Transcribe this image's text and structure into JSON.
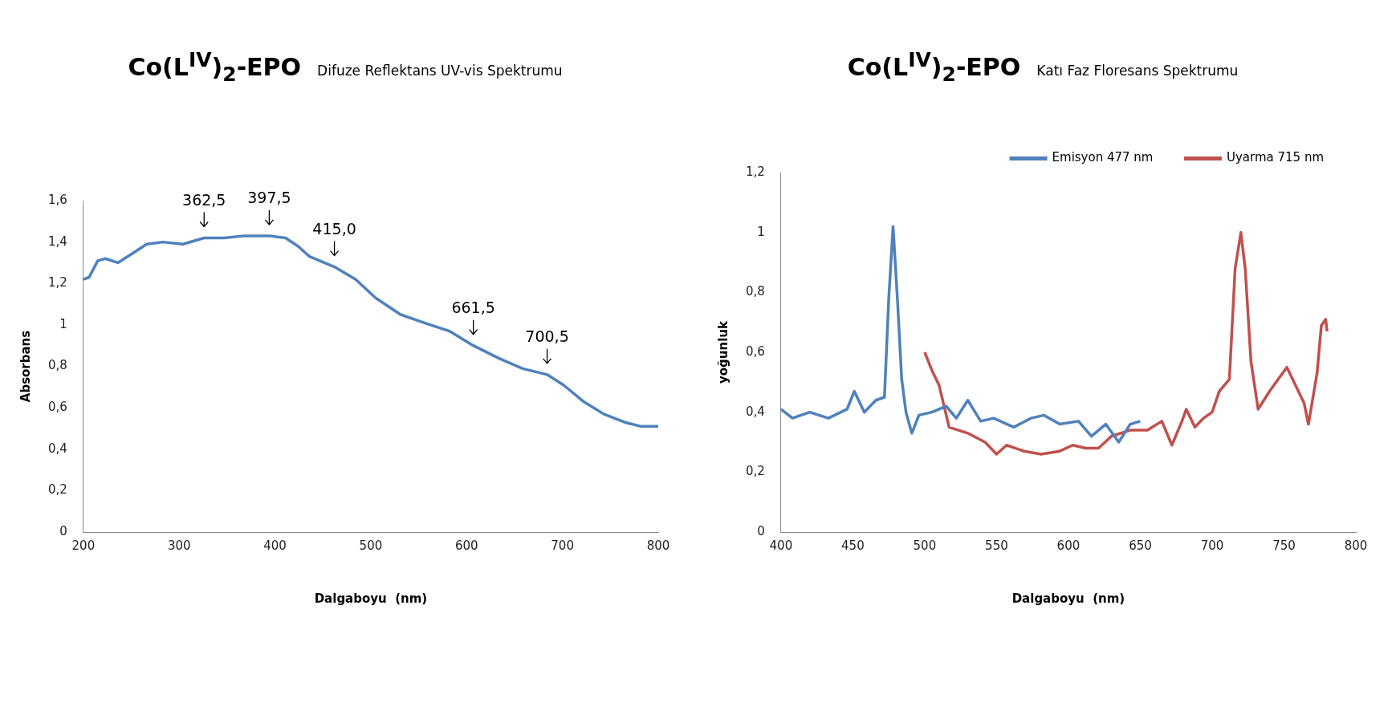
{
  "chart_data": [
    {
      "type": "line",
      "title": "Co(L$^{IV}$)$_{2}$-EPO",
      "subtitle": "Difuze Reflektans UV-vis Spektrumu",
      "xlabel": "Dalgaboyu  (nm)",
      "ylabel": "Absorbans",
      "xlim": [
        200,
        800
      ],
      "xticks": [
        200,
        300,
        400,
        500,
        600,
        700,
        800
      ],
      "ylim": [
        0,
        1.6
      ],
      "yticks": [
        {
          "value": 0,
          "label": "0"
        },
        {
          "value": 0.2,
          "label": "0,2"
        },
        {
          "value": 0.4,
          "label": "0,4"
        },
        {
          "value": 0.6,
          "label": "0,6"
        },
        {
          "value": 0.8,
          "label": "0,8"
        },
        {
          "value": 1,
          "label": "1"
        },
        {
          "value": 1.2,
          "label": "1,2"
        },
        {
          "value": 1.4,
          "label": "1,4"
        },
        {
          "value": 1.6,
          "label": "1,6"
        }
      ],
      "series": [
        {
          "color": "#4f81bd",
          "x": [
            200,
            206,
            215,
            223,
            236,
            253,
            266,
            283,
            304,
            326,
            347,
            368,
            394,
            411,
            424,
            436,
            462,
            484,
            505,
            531,
            556,
            582,
            607,
            633,
            658,
            684,
            701,
            722,
            743,
            765,
            782,
            800
          ],
          "values": [
            1.22,
            1.23,
            1.31,
            1.32,
            1.3,
            1.35,
            1.39,
            1.4,
            1.39,
            1.42,
            1.42,
            1.43,
            1.43,
            1.42,
            1.38,
            1.33,
            1.28,
            1.22,
            1.13,
            1.05,
            1.01,
            0.97,
            0.9,
            0.84,
            0.79,
            0.76,
            0.71,
            0.63,
            0.57,
            0.53,
            0.51,
            0.51
          ]
        }
      ],
      "annotations": [
        {
          "text": "362,5",
          "x": 326,
          "y": 1.42
        },
        {
          "text": "397,5",
          "x": 394,
          "y": 1.43
        },
        {
          "text": "415,0",
          "x": 462,
          "y": 1.28
        },
        {
          "text": "661,5",
          "x": 607,
          "y": 0.9
        },
        {
          "text": "700,5",
          "x": 684,
          "y": 0.76
        }
      ]
    },
    {
      "type": "line",
      "title": "Co(L$^{IV}$)$_{2}$-EPO",
      "subtitle": "Katı Faz Floresans Spektrumu",
      "xlabel": "Dalgaboyu  (nm)",
      "ylabel": "yoğunluk",
      "legend": "top right",
      "xlim": [
        400,
        800
      ],
      "xticks": [
        400,
        450,
        500,
        550,
        600,
        650,
        700,
        750,
        800
      ],
      "ylim": [
        0,
        1.2
      ],
      "yticks": [
        {
          "value": 0,
          "label": "0"
        },
        {
          "value": 0.2,
          "label": "0,2"
        },
        {
          "value": 0.4,
          "label": "0,4"
        },
        {
          "value": 0.6,
          "label": "0,6"
        },
        {
          "value": 0.8,
          "label": "0,8"
        },
        {
          "value": 1,
          "label": "1"
        },
        {
          "value": 1.2,
          "label": "1,2"
        }
      ],
      "series": [
        {
          "name": "Emisyon 477 nm",
          "color": "#4f81bd",
          "x": [
            400,
            408,
            420,
            433,
            446,
            451,
            458,
            466,
            472,
            475,
            478,
            481,
            484,
            487,
            491,
            496,
            505,
            515,
            522,
            530,
            539,
            548,
            562,
            574,
            583,
            594,
            607,
            616,
            626,
            635,
            643,
            650
          ],
          "values": [
            0.41,
            0.38,
            0.4,
            0.38,
            0.41,
            0.47,
            0.4,
            0.44,
            0.45,
            0.78,
            1.02,
            0.78,
            0.51,
            0.4,
            0.33,
            0.39,
            0.4,
            0.42,
            0.38,
            0.44,
            0.37,
            0.38,
            0.35,
            0.38,
            0.39,
            0.36,
            0.37,
            0.32,
            0.36,
            0.3,
            0.36,
            0.37
          ]
        },
        {
          "name": "Uyarma 715 nm",
          "color": "#c0504d",
          "x": [
            500,
            505,
            510,
            517,
            530,
            542,
            550,
            557,
            569,
            581,
            594,
            603,
            612,
            621,
            630,
            643,
            655,
            665,
            672,
            679,
            682,
            688,
            694,
            700,
            705,
            712,
            716,
            720,
            723,
            727,
            732,
            740,
            746,
            752,
            758,
            764,
            767,
            773,
            776,
            779,
            780
          ],
          "values": [
            0.6,
            0.54,
            0.49,
            0.35,
            0.33,
            0.3,
            0.26,
            0.29,
            0.27,
            0.26,
            0.27,
            0.29,
            0.28,
            0.28,
            0.32,
            0.34,
            0.34,
            0.37,
            0.29,
            0.37,
            0.41,
            0.35,
            0.38,
            0.4,
            0.47,
            0.51,
            0.88,
            1.0,
            0.88,
            0.57,
            0.41,
            0.47,
            0.51,
            0.55,
            0.49,
            0.43,
            0.36,
            0.53,
            0.69,
            0.71,
            0.67
          ]
        }
      ]
    }
  ]
}
